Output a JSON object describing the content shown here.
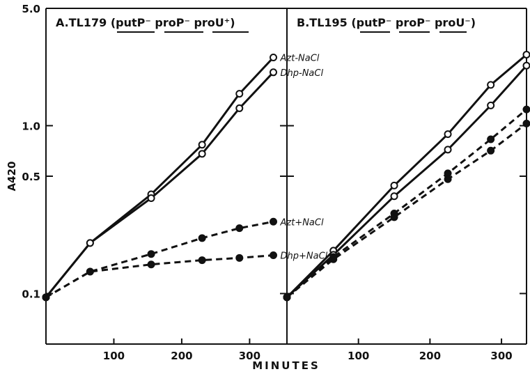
{
  "chart_data": {
    "type": "line",
    "yscale": "log",
    "ylabel": "A420",
    "xlabel": "MINUTES",
    "ylim": [
      0.05,
      5.0
    ],
    "y_ticks": [
      0.1,
      0.5,
      1.0,
      5.0
    ],
    "y_tick_labels": [
      "0.1",
      "0.5",
      "1.0",
      "5.0"
    ],
    "x_ticks": [
      100,
      200,
      300
    ],
    "x_tick_labels": [
      "100",
      "200",
      "300"
    ],
    "grid": false,
    "panels": [
      {
        "title": "A.TL179 (putP⁻ proP⁻ proU⁺)",
        "xlim": [
          0,
          355
        ],
        "series": [
          {
            "name": "Azt-NaCl",
            "style": "solid",
            "marker": "open",
            "x": [
              0,
              65,
              155,
              230,
              285,
              335
            ],
            "y": [
              0.095,
              0.2,
              0.39,
              0.77,
              1.55,
              2.55
            ]
          },
          {
            "name": "Dhp-NaCl",
            "style": "solid",
            "marker": "open",
            "x": [
              0,
              65,
              155,
              230,
              285,
              335
            ],
            "y": [
              0.095,
              0.2,
              0.37,
              0.68,
              1.27,
              2.08
            ]
          },
          {
            "name": "Azt+NaCl",
            "style": "dashed",
            "marker": "filled",
            "x": [
              0,
              65,
              155,
              230,
              285,
              335
            ],
            "y": [
              0.095,
              0.135,
              0.172,
              0.214,
              0.245,
              0.268
            ]
          },
          {
            "name": "Dhp+NaCl",
            "style": "dashed",
            "marker": "filled",
            "x": [
              0,
              65,
              155,
              230,
              285,
              335
            ],
            "y": [
              0.095,
              0.135,
              0.149,
              0.158,
              0.163,
              0.169
            ]
          }
        ]
      },
      {
        "title": "B.TL195 (putP⁻ proP⁻ proU⁻)",
        "xlim": [
          0,
          335
        ],
        "series": [
          {
            "name": "Azt-NaCl",
            "style": "solid",
            "marker": "open",
            "x": [
              0,
              65,
              150,
              225,
              285,
              335
            ],
            "y": [
              0.095,
              0.18,
              0.44,
              0.89,
              1.75,
              2.65
            ]
          },
          {
            "name": "Dhp-NaCl",
            "style": "solid",
            "marker": "open",
            "x": [
              0,
              65,
              150,
              225,
              285,
              335
            ],
            "y": [
              0.095,
              0.17,
              0.38,
              0.72,
              1.32,
              2.28
            ]
          },
          {
            "name": "Azt+NaCl",
            "style": "dashed",
            "marker": "filled",
            "x": [
              0,
              65,
              150,
              225,
              285,
              335
            ],
            "y": [
              0.095,
              0.165,
              0.3,
              0.52,
              0.83,
              1.25
            ]
          },
          {
            "name": "Dhp+NaCl",
            "style": "dashed",
            "marker": "filled",
            "x": [
              0,
              65,
              150,
              225,
              285,
              335
            ],
            "y": [
              0.095,
              0.16,
              0.285,
              0.48,
              0.71,
              1.03
            ]
          }
        ]
      }
    ]
  }
}
